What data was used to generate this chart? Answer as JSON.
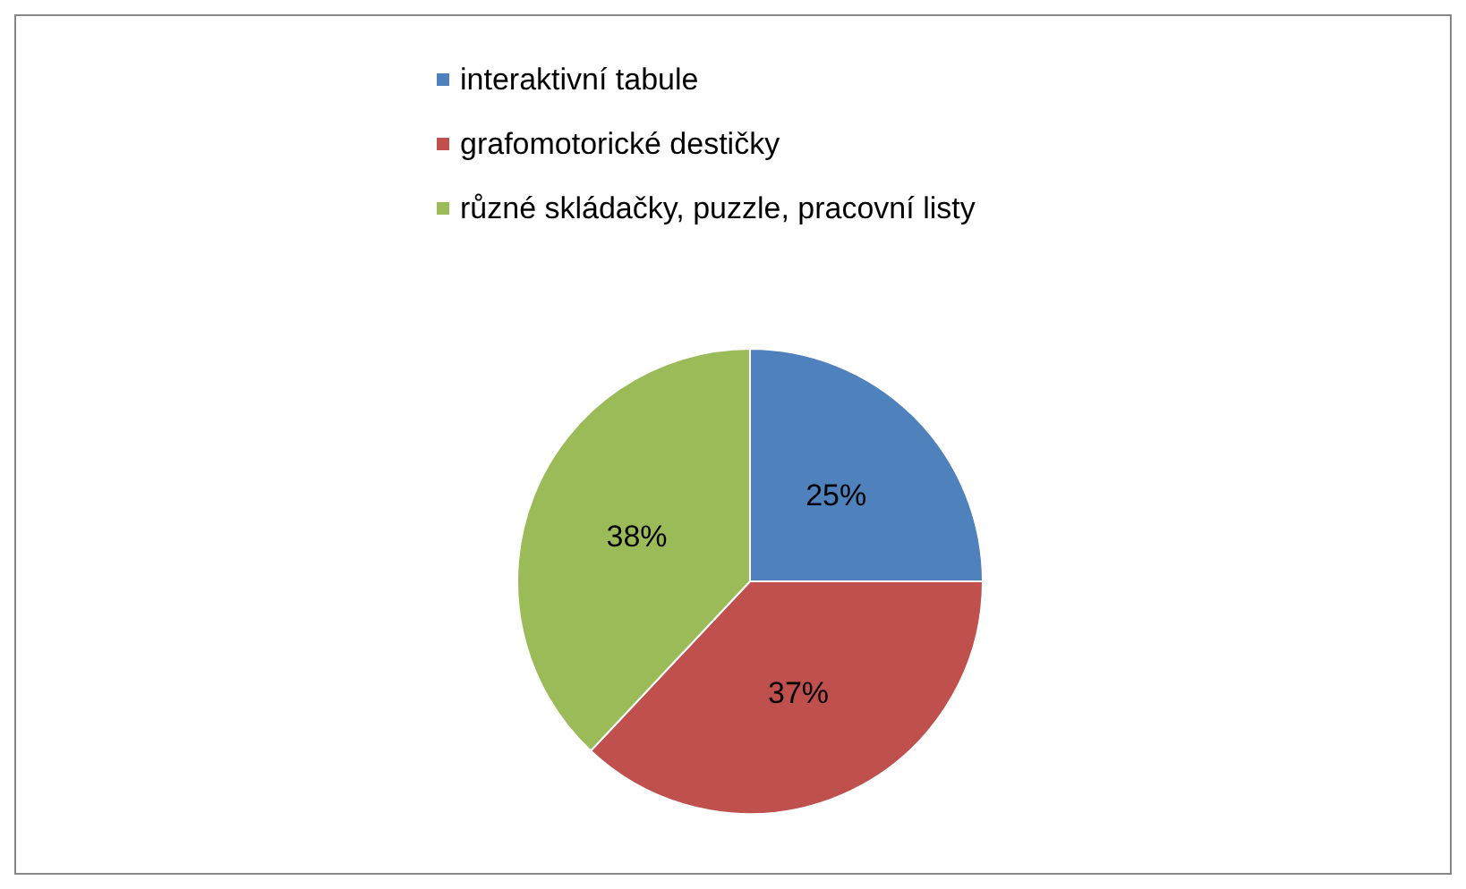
{
  "chart_data": {
    "type": "pie",
    "categories": [
      "interaktivní tabule",
      "grafomotorické destičky",
      "různé skládačky, puzzle, pracovní listy"
    ],
    "values": [
      25,
      37,
      38
    ],
    "colors": [
      "#4f81bd",
      "#c0504d",
      "#9bbb59"
    ],
    "value_labels": [
      "25%",
      "37%",
      "38%"
    ],
    "legend": "top"
  }
}
